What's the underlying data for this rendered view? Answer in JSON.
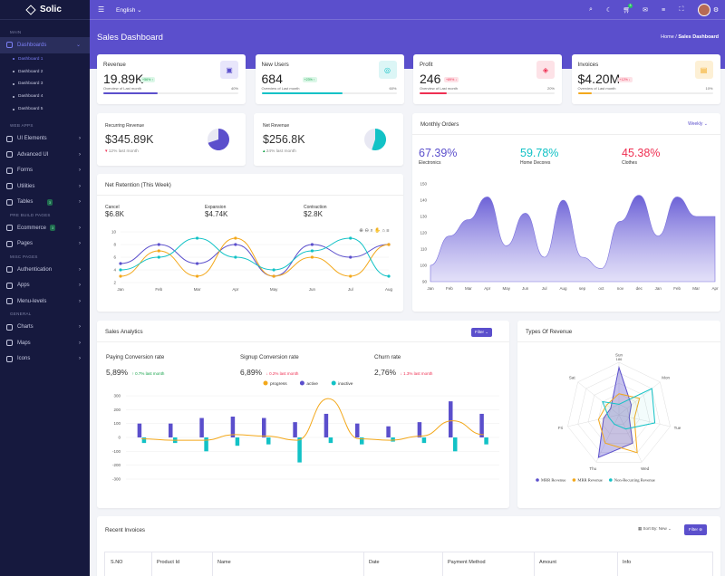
{
  "app": {
    "name": "Solic"
  },
  "sidebar": {
    "sections": [
      {
        "title": "MAIN",
        "items": [
          {
            "label": "Dashboards",
            "active": true,
            "sub": [
              "Dashboard 1",
              "Dashboard 2",
              "Dashboard 3",
              "Dashboard 4",
              "Dashboard 5"
            ]
          }
        ]
      },
      {
        "title": "WEB APPS",
        "items": [
          {
            "label": "UI Elements"
          },
          {
            "label": "Advanced UI"
          },
          {
            "label": "Forms"
          },
          {
            "label": "Utilities"
          },
          {
            "label": "Tables",
            "badge": "3"
          }
        ]
      },
      {
        "title": "PRE BUILD PAGES",
        "items": [
          {
            "label": "Ecommerce",
            "badge": "3"
          },
          {
            "label": "Pages"
          }
        ]
      },
      {
        "title": "MISC PAGES",
        "items": [
          {
            "label": "Authentication"
          },
          {
            "label": "Apps"
          },
          {
            "label": "Menu-levels"
          }
        ]
      },
      {
        "title": "GENERAL",
        "items": [
          {
            "label": "Charts"
          },
          {
            "label": "Maps"
          },
          {
            "label": "Icons"
          }
        ]
      }
    ]
  },
  "topbar": {
    "language": "English",
    "notif_count": "3"
  },
  "page": {
    "title": "Sales Dashboard",
    "crumb_home": "Home",
    "crumb_sep": "/",
    "crumb_current": "Sales Dashboard"
  },
  "stats": [
    {
      "label": "Revenue",
      "value": "19.89K",
      "badge": "+56% ↑",
      "over": "Overview of Last month",
      "pct": "40%",
      "pct_val": 0.4,
      "color": "#5b4fcc",
      "badge_bg": "#dcf7e8",
      "badge_fg": "#16a34a",
      "icon_bg": "#e8e6fb"
    },
    {
      "label": "New Users",
      "value": "684",
      "badge": "+23% ↑",
      "over": "Overview of Last month",
      "pct": "60%",
      "pct_val": 0.6,
      "color": "#12c2c6",
      "badge_bg": "#dcf7e8",
      "badge_fg": "#16a34a",
      "icon_bg": "#dcf6f6"
    },
    {
      "label": "Profit",
      "value": "246",
      "badge": "+89% ↓",
      "over": "Overview of Last month",
      "pct": "20%",
      "pct_val": 0.2,
      "color": "#ef2f52",
      "badge_bg": "#fde2e7",
      "badge_fg": "#ef2f52",
      "icon_bg": "#fde2e7"
    },
    {
      "label": "Invoices",
      "value": "$4.20M",
      "badge": "+12% ↓",
      "over": "Overview of Last month",
      "pct": "10%",
      "pct_val": 0.1,
      "color": "#f3a81b",
      "badge_bg": "#fde2e7",
      "badge_fg": "#ef2f52",
      "icon_bg": "#fdf0d5"
    }
  ],
  "recurring": {
    "label": "Recurring Revenue",
    "value": "$345.89K",
    "delta": "12% last month",
    "pie_pct": 0.7
  },
  "netrev": {
    "label": "Net Revenue",
    "value": "$256.8K",
    "delta": "24% last month",
    "pie_pct": 0.55
  },
  "net_retention": {
    "title": "Net Retention (This Week)",
    "stats": [
      {
        "label": "Cancel",
        "value": "$6.8K"
      },
      {
        "label": "Expansion",
        "value": "$4.74K"
      },
      {
        "label": "Contraction",
        "value": "$2.8K"
      }
    ],
    "chart_data": {
      "type": "line",
      "categories": [
        "Jan",
        "Feb",
        "Mar",
        "Apr",
        "May",
        "Jun",
        "Jul",
        "Aug"
      ],
      "ylim": [
        2,
        10
      ],
      "yticks": [
        "10",
        "8",
        "6",
        "4",
        "2"
      ],
      "series": [
        {
          "color": "#5b4fcc",
          "values": [
            5,
            8,
            5,
            8,
            3,
            8,
            6,
            8
          ]
        },
        {
          "color": "#f3a81b",
          "values": [
            3,
            7,
            3,
            9,
            3,
            6,
            3,
            8
          ]
        },
        {
          "color": "#12c2c6",
          "values": [
            4,
            6,
            9,
            6,
            4,
            7,
            9,
            3
          ]
        }
      ]
    }
  },
  "monthly_orders": {
    "title": "Monthly Orders",
    "dropdown": "Weekly",
    "stats": [
      {
        "value": "67.39%",
        "label": "Electronics",
        "color": "#5b4fcc"
      },
      {
        "value": "59.78%",
        "label": "Home Decores",
        "color": "#12c2c6"
      },
      {
        "value": "45.38%",
        "label": "Clothes",
        "color": "#ef2f52"
      }
    ],
    "chart_data": {
      "type": "area",
      "categories": [
        "Jan",
        "Feb",
        "Mar",
        "Apr",
        "May",
        "Jun",
        "Jul",
        "Aug",
        "sep",
        "oct",
        "nov",
        "dec",
        "Jan",
        "Feb",
        "Mar",
        "Apr"
      ],
      "ylim": [
        90,
        150
      ],
      "yticks": [
        "150",
        "140",
        "130",
        "120",
        "110",
        "100",
        "90"
      ],
      "values": [
        100,
        118,
        128,
        142,
        112,
        132,
        105,
        140,
        105,
        98,
        127,
        143,
        118,
        142,
        130,
        130
      ]
    }
  },
  "sales_analytics": {
    "title": "Sales Analytics",
    "filter": "Filter ⌄",
    "stats": [
      {
        "label": "Paying Conversion rate",
        "value": "5,89%",
        "delta": "↑ 0.7% last month",
        "dcolor": "#16a34a"
      },
      {
        "label": "Signup Conversion rate",
        "value": "6,89%",
        "delta": "↓ 0.2% last month",
        "dcolor": "#ef2f52"
      },
      {
        "label": "Churn rate",
        "value": "2,76%",
        "delta": "↓ 1.3% last month",
        "dcolor": "#ef2f52"
      }
    ],
    "chart_data": {
      "type": "bar",
      "categories": [
        "Jan",
        "Feb",
        "Mar",
        "Apr",
        "May",
        "Jun",
        "Jul",
        "Aug",
        "sep",
        "oct",
        "nov",
        "dec"
      ],
      "ylim": [
        -300,
        300
      ],
      "yticks": [
        "300",
        "200",
        "100",
        "0",
        "-100",
        "-200",
        "-300"
      ],
      "series": [
        {
          "name": "progress",
          "color": "#f3a81b",
          "values": [
            -10,
            -20,
            -20,
            20,
            10,
            -20,
            280,
            -10,
            -20,
            10,
            120,
            20
          ]
        },
        {
          "name": "active",
          "color": "#5b4fcc",
          "values": [
            100,
            100,
            140,
            150,
            140,
            110,
            170,
            100,
            80,
            110,
            260,
            170
          ]
        },
        {
          "name": "inactive",
          "color": "#12c2c6",
          "values": [
            -40,
            -40,
            -100,
            -60,
            -50,
            -180,
            -40,
            -50,
            -30,
            -40,
            -100,
            -50
          ]
        }
      ]
    }
  },
  "types_revenue": {
    "title": "Types Of Revenue",
    "chart_data": {
      "type": "radar",
      "categories": [
        "Sun",
        "Mon",
        "Tue",
        "Wed",
        "Thu",
        "Fri",
        "Sat"
      ],
      "top_label": "186",
      "series": [
        {
          "name": "MRR Revenue",
          "color": "#5b4fcc",
          "values": [
            0.9,
            0.3,
            0.2,
            0.6,
            0.9,
            0.3,
            0.2
          ]
        },
        {
          "name": "MRR Revenue",
          "color": "#f3a81b",
          "values": [
            0.4,
            0.5,
            0.3,
            0.8,
            0.6,
            0.4,
            0.3
          ]
        },
        {
          "name": "Non-Recurring Revenue",
          "color": "#12c2c6",
          "values": [
            0.2,
            0.8,
            0.7,
            0.3,
            0.2,
            0.2,
            0.4
          ]
        }
      ]
    }
  },
  "invoices": {
    "title": "Recent Invoices",
    "sort": "Sort By: New ⌄",
    "filter": "Filter ⊜",
    "columns": [
      "S.NO",
      "Product Id",
      "Name",
      "Date",
      "Payment Method",
      "Amount",
      "Info"
    ]
  }
}
